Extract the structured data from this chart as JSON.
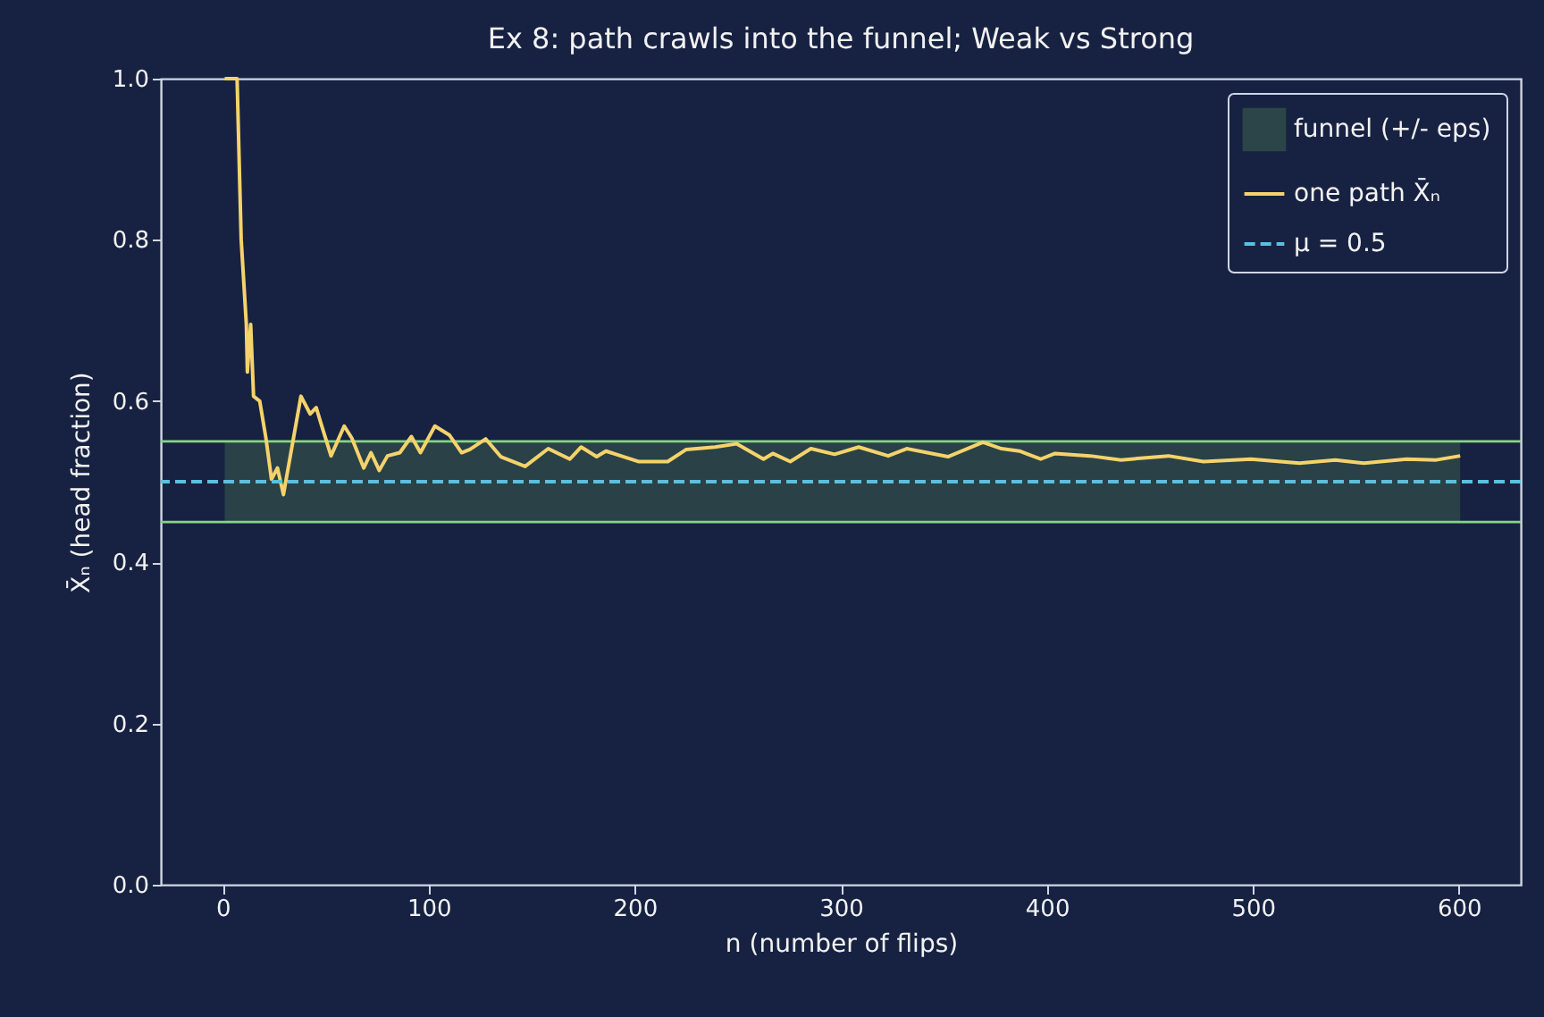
{
  "chart_data": {
    "type": "line",
    "title": "Ex 8: path crawls into the funnel; Weak vs Strong",
    "xlabel": "n  (number of flips)",
    "ylabel": "X̄ₙ  (head fraction)",
    "xlim": [
      -30,
      630
    ],
    "xticks": [
      0,
      100,
      200,
      300,
      400,
      500,
      600
    ],
    "ylim": [
      0,
      1
    ],
    "yticks": [
      {
        "value": 0,
        "label": "0.0"
      },
      0.2,
      0.4,
      0.6,
      0.8,
      {
        "value": 1,
        "label": "1.0"
      }
    ],
    "grid": false,
    "legend": "top right",
    "marker": "none",
    "series": [
      {
        "name": "one path X̄ₙ",
        "color": "#f5d36b",
        "line_style": "solid",
        "x": [
          1,
          4,
          7,
          9,
          11.5,
          12,
          13.6,
          15,
          18,
          21,
          23.7,
          26.6,
          29.5,
          38,
          42.5,
          45.4,
          48,
          52.6,
          59,
          62.7,
          68.5,
          72,
          76,
          80,
          86,
          91.6,
          96,
          103,
          110,
          116,
          120,
          127.7,
          135,
          146.8,
          158,
          168.5,
          174,
          181.5,
          186,
          201.7,
          216,
          225,
          239,
          249.4,
          262.5,
          267,
          275.5,
          285.5,
          297,
          308.7,
          323,
          332,
          352,
          369,
          378,
          386.7,
          397,
          404,
          421,
          436,
          459,
          476,
          499,
          522.6,
          540,
          554,
          574.6,
          589,
          600.6
        ],
        "values": [
          1.0,
          1.0,
          1.0,
          0.8,
          0.695,
          0.636,
          0.695,
          0.606,
          0.6,
          0.554,
          0.503,
          0.517,
          0.484,
          0.606,
          0.584,
          0.592,
          0.57,
          0.532,
          0.569,
          0.554,
          0.517,
          0.536,
          0.514,
          0.532,
          0.536,
          0.556,
          0.536,
          0.569,
          0.558,
          0.536,
          0.54,
          0.553,
          0.531,
          0.519,
          0.541,
          0.528,
          0.543,
          0.531,
          0.538,
          0.525,
          0.525,
          0.54,
          0.543,
          0.547,
          0.528,
          0.535,
          0.525,
          0.541,
          0.534,
          0.543,
          0.532,
          0.541,
          0.531,
          0.549,
          0.541,
          0.538,
          0.528,
          0.535,
          0.532,
          0.527,
          0.532,
          0.525,
          0.528,
          0.523,
          0.527,
          0.523,
          0.528,
          0.527,
          0.532
        ]
      }
    ],
    "bands": [
      {
        "axis": "y",
        "from": 0.45,
        "to": 0.55,
        "label": "funnel (+/- eps)",
        "color": "#2c4548"
      }
    ],
    "ref_lines": [
      {
        "axis": "y",
        "value": 0.55,
        "color": "#86d486",
        "line_style": "solid"
      },
      {
        "axis": "y",
        "value": 0.45,
        "color": "#86d486",
        "line_style": "solid"
      },
      {
        "axis": "y",
        "value": 0.5,
        "label": "μ = 0.5",
        "color": "#5bc0de",
        "line_style": "dashed"
      }
    ]
  }
}
